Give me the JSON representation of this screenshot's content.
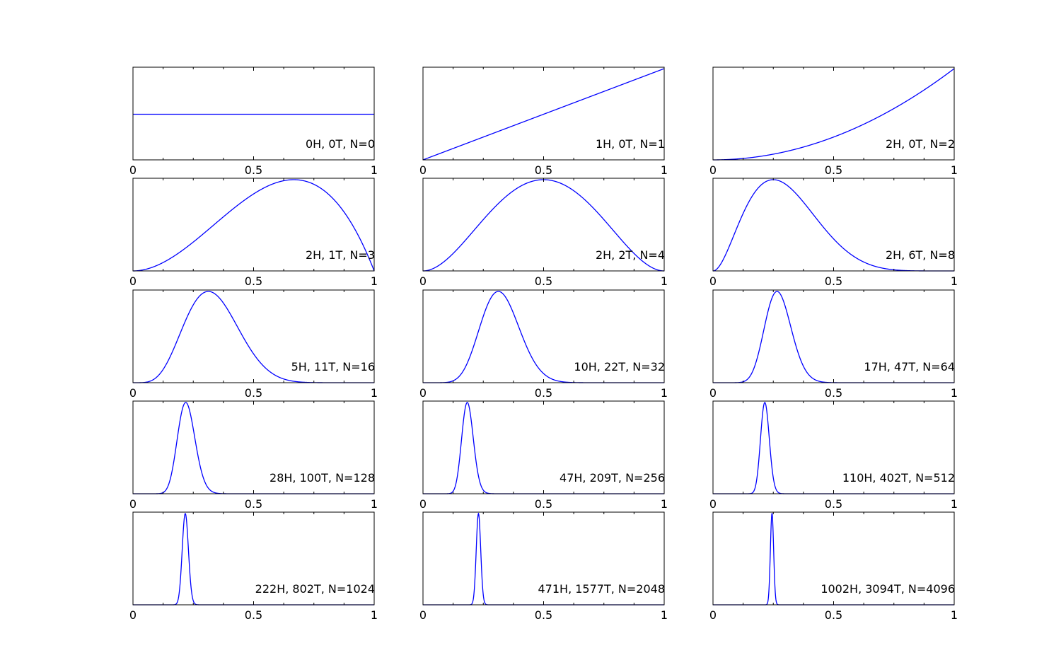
{
  "chart_data": [
    {
      "type": "line",
      "label": "0H, 0T, N=0",
      "heads": 0,
      "tails": 0,
      "n": 0,
      "xlim": [
        0,
        1
      ],
      "xticks": [
        "0",
        "0.5",
        "1"
      ]
    },
    {
      "type": "line",
      "label": "1H, 0T, N=1",
      "heads": 1,
      "tails": 0,
      "n": 1,
      "xlim": [
        0,
        1
      ],
      "xticks": [
        "0",
        "0.5",
        "1"
      ]
    },
    {
      "type": "line",
      "label": "2H, 0T, N=2",
      "heads": 2,
      "tails": 0,
      "n": 2,
      "xlim": [
        0,
        1
      ],
      "xticks": [
        "0",
        "0.5",
        "1"
      ]
    },
    {
      "type": "line",
      "label": "2H, 1T, N=3",
      "heads": 2,
      "tails": 1,
      "n": 3,
      "xlim": [
        0,
        1
      ],
      "xticks": [
        "0",
        "0.5",
        "1"
      ]
    },
    {
      "type": "line",
      "label": "2H, 2T, N=4",
      "heads": 2,
      "tails": 2,
      "n": 4,
      "xlim": [
        0,
        1
      ],
      "xticks": [
        "0",
        "0.5",
        "1"
      ]
    },
    {
      "type": "line",
      "label": "2H, 6T, N=8",
      "heads": 2,
      "tails": 6,
      "n": 8,
      "xlim": [
        0,
        1
      ],
      "xticks": [
        "0",
        "0.5",
        "1"
      ]
    },
    {
      "type": "line",
      "label": "5H, 11T, N=16",
      "heads": 5,
      "tails": 11,
      "n": 16,
      "xlim": [
        0,
        1
      ],
      "xticks": [
        "0",
        "0.5",
        "1"
      ]
    },
    {
      "type": "line",
      "label": "10H, 22T, N=32",
      "heads": 10,
      "tails": 22,
      "n": 32,
      "xlim": [
        0,
        1
      ],
      "xticks": [
        "0",
        "0.5",
        "1"
      ]
    },
    {
      "type": "line",
      "label": "17H, 47T, N=64",
      "heads": 17,
      "tails": 47,
      "n": 64,
      "xlim": [
        0,
        1
      ],
      "xticks": [
        "0",
        "0.5",
        "1"
      ]
    },
    {
      "type": "line",
      "label": "28H, 100T, N=128",
      "heads": 28,
      "tails": 100,
      "n": 128,
      "xlim": [
        0,
        1
      ],
      "xticks": [
        "0",
        "0.5",
        "1"
      ]
    },
    {
      "type": "line",
      "label": "47H, 209T, N=256",
      "heads": 47,
      "tails": 209,
      "n": 256,
      "xlim": [
        0,
        1
      ],
      "xticks": [
        "0",
        "0.5",
        "1"
      ]
    },
    {
      "type": "line",
      "label": "110H, 402T, N=512",
      "heads": 110,
      "tails": 402,
      "n": 512,
      "xlim": [
        0,
        1
      ],
      "xticks": [
        "0",
        "0.5",
        "1"
      ]
    },
    {
      "type": "line",
      "label": "222H, 802T, N=1024",
      "heads": 222,
      "tails": 802,
      "n": 1024,
      "xlim": [
        0,
        1
      ],
      "xticks": [
        "0",
        "0.5",
        "1"
      ]
    },
    {
      "type": "line",
      "label": "471H, 1577T, N=2048",
      "heads": 471,
      "tails": 1577,
      "n": 2048,
      "xlim": [
        0,
        1
      ],
      "xticks": [
        "0",
        "0.5",
        "1"
      ]
    },
    {
      "type": "line",
      "label": "1002H, 3094T, N=4096",
      "heads": 1002,
      "tails": 3094,
      "n": 4096,
      "xlim": [
        0,
        1
      ],
      "xticks": [
        "0",
        "0.5",
        "1"
      ]
    }
  ],
  "colors": {
    "curve": "#0000ff",
    "axes": "#000000",
    "background": "#ffffff"
  }
}
